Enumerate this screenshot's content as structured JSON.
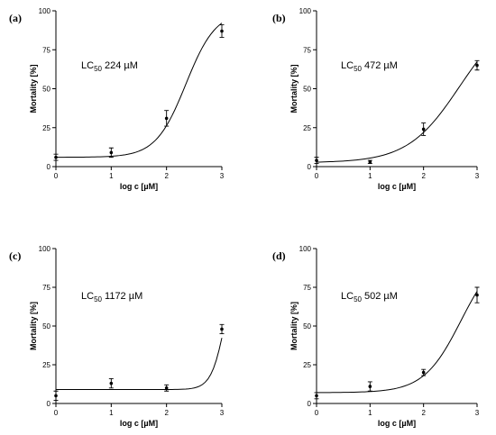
{
  "chart_data": [
    {
      "panel": "(a)",
      "type": "scatter",
      "xlabel": "log c [µM]",
      "ylabel": "Mortality [%]",
      "xlim": [
        0,
        3
      ],
      "ylim": [
        0,
        100
      ],
      "xticks": [
        "0",
        "1",
        "2",
        "3"
      ],
      "yticks": [
        "0",
        "25",
        "50",
        "75",
        "100"
      ],
      "annotation": {
        "prefix": "LC",
        "sub": "50",
        "value": " 224 µM"
      },
      "points": [
        {
          "x": 0,
          "y": 6,
          "err": 2
        },
        {
          "x": 1,
          "y": 9,
          "err": 3
        },
        {
          "x": 2,
          "y": 31,
          "err": 5
        },
        {
          "x": 3,
          "y": 87,
          "err": 4
        }
      ],
      "fit": {
        "bottom": 6,
        "top": 100,
        "logEC50": 2.35,
        "hill": 1.6
      }
    },
    {
      "panel": "(b)",
      "type": "scatter",
      "xlabel": "log c [µM]",
      "ylabel": "Mortality [%]",
      "xlim": [
        0,
        3
      ],
      "ylim": [
        0,
        100
      ],
      "xticks": [
        "0",
        "1",
        "2",
        "3"
      ],
      "yticks": [
        "0",
        "25",
        "50",
        "75",
        "100"
      ],
      "annotation": {
        "prefix": "LC",
        "sub": "50",
        "value": " 472 µM"
      },
      "points": [
        {
          "x": 0,
          "y": 4,
          "err": 2
        },
        {
          "x": 1,
          "y": 3,
          "err": 1
        },
        {
          "x": 2,
          "y": 24,
          "err": 4
        },
        {
          "x": 3,
          "y": 65,
          "err": 3
        }
      ],
      "fit": {
        "bottom": 2.5,
        "top": 100,
        "logEC50": 2.67,
        "hill": 0.9
      }
    },
    {
      "panel": "(c)",
      "type": "scatter",
      "xlabel": "log c [µM]",
      "ylabel": "Mortality [%]",
      "xlim": [
        0,
        3
      ],
      "ylim": [
        0,
        100
      ],
      "xticks": [
        "0",
        "1",
        "2",
        "3"
      ],
      "yticks": [
        "0",
        "25",
        "50",
        "75",
        "100"
      ],
      "annotation": {
        "prefix": "LC",
        "sub": "50",
        "value": " 1172 µM"
      },
      "points": [
        {
          "x": 0,
          "y": 5,
          "err": 3
        },
        {
          "x": 1,
          "y": 13,
          "err": 3
        },
        {
          "x": 2,
          "y": 10,
          "err": 2
        },
        {
          "x": 3,
          "y": 48,
          "err": 3
        }
      ],
      "fit": {
        "bottom": 9,
        "top": 100,
        "logEC50": 3.07,
        "hill": 3.4
      }
    },
    {
      "panel": "(d)",
      "type": "scatter",
      "xlabel": "log c [µM]",
      "ylabel": "Mortality [%]",
      "xlim": [
        0,
        3
      ],
      "ylim": [
        0,
        100
      ],
      "xticks": [
        "0",
        "1",
        "2",
        "3"
      ],
      "yticks": [
        "0",
        "25",
        "50",
        "75",
        "100"
      ],
      "annotation": {
        "prefix": "LC",
        "sub": "50",
        "value": " 502 µM"
      },
      "points": [
        {
          "x": 0,
          "y": 5,
          "err": 2
        },
        {
          "x": 1,
          "y": 11,
          "err": 3
        },
        {
          "x": 2,
          "y": 20,
          "err": 2
        },
        {
          "x": 3,
          "y": 70,
          "err": 5
        }
      ],
      "fit": {
        "bottom": 7,
        "top": 100,
        "logEC50": 2.7,
        "hill": 1.25
      }
    }
  ]
}
